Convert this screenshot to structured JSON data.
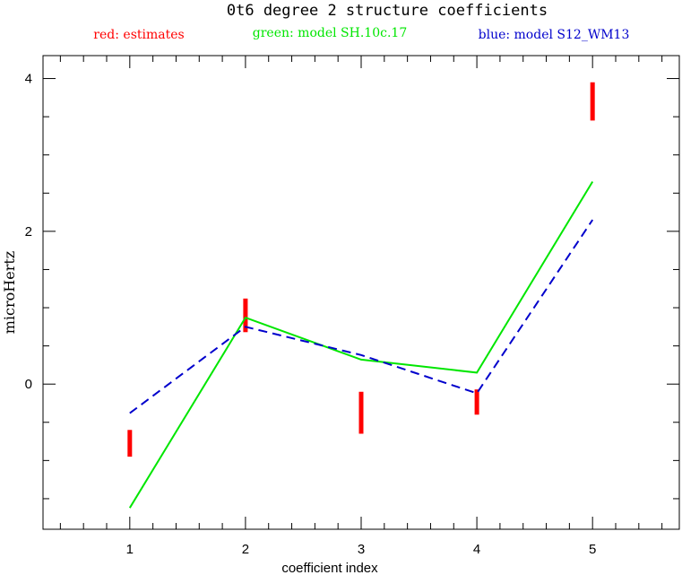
{
  "chart_data": {
    "type": "line",
    "title": "0t6 degree 2 structure coefficients",
    "xlabel": "coefficient index",
    "ylabel": "microHertz",
    "xlim": [
      0.25,
      5.75
    ],
    "ylim": [
      -1.9,
      4.3
    ],
    "x_ticks": [
      1,
      2,
      3,
      4,
      5
    ],
    "y_ticks": [
      0,
      2,
      4
    ],
    "legend_placement": "top",
    "series": [
      {
        "name": "red: estimates",
        "kind": "errorbar",
        "color": "#ff0000",
        "x": [
          1,
          2,
          3,
          4,
          5
        ],
        "low": [
          -0.95,
          0.68,
          -0.65,
          -0.4,
          3.45
        ],
        "high": [
          -0.6,
          1.12,
          -0.1,
          -0.07,
          3.95
        ]
      },
      {
        "name": "green: model SH.10c.17",
        "kind": "line",
        "color": "#00e600",
        "dash": "solid",
        "x": [
          1,
          2,
          3,
          4,
          5
        ],
        "values": [
          -1.62,
          0.87,
          0.32,
          0.15,
          2.65
        ]
      },
      {
        "name": "blue: model S12_WM13",
        "kind": "line",
        "color": "#0000cc",
        "dash": "dashed",
        "x": [
          1,
          2,
          3,
          4,
          5
        ],
        "values": [
          -0.38,
          0.75,
          0.38,
          -0.12,
          2.15
        ]
      }
    ]
  }
}
